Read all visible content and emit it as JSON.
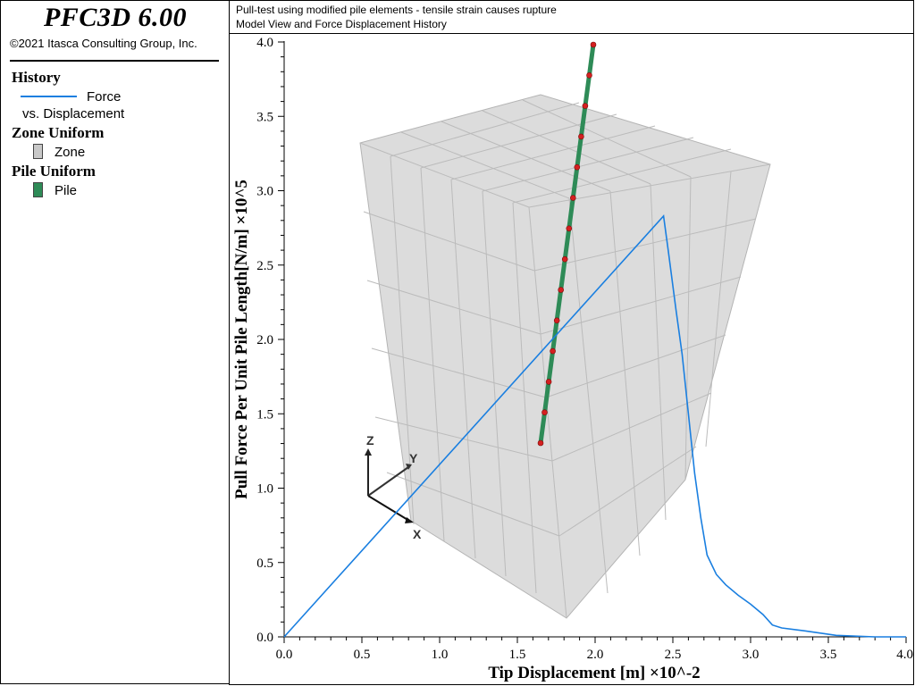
{
  "app": {
    "name": "PFC3D 6.00",
    "copyright": "©2021 Itasca Consulting Group, Inc."
  },
  "header": {
    "line1": "Pull-test using modified pile elements - tensile strain causes rupture",
    "line2": "Model View and Force Displacement History"
  },
  "legend": {
    "history_title": "History",
    "history_item_line1": "Force",
    "history_item_line2": "vs. Displacement",
    "zone_title": "Zone Uniform",
    "zone_item": "Zone",
    "pile_title": "Pile Uniform",
    "pile_item": "Pile"
  },
  "colors": {
    "history_line": "#1a7fe0",
    "zone": "#c8c8c8",
    "pile": "#2e8b57",
    "pile_node": "#d42020"
  },
  "icons": [
    "axes-triad-icon"
  ],
  "triad": {
    "x": "X",
    "y": "Y",
    "z": "Z"
  },
  "chart_data": {
    "type": "line",
    "title": "",
    "xlabel": "Tip Displacement [m] ×10^-2",
    "ylabel": "Pull Force Per Unit Pile Length[N/m] ×10^5",
    "xlim": [
      0,
      4.0
    ],
    "ylim": [
      0,
      4.0
    ],
    "x_ticks": [
      "0.0",
      "0.5",
      "1.0",
      "1.5",
      "2.0",
      "2.5",
      "3.0",
      "3.5",
      "4.0"
    ],
    "y_ticks": [
      "0.0",
      "0.5",
      "1.0",
      "1.5",
      "2.0",
      "2.5",
      "3.0",
      "3.5",
      "4.0"
    ],
    "grid": false,
    "series": [
      {
        "name": "Force vs. Displacement",
        "x": [
          0,
          2.44,
          2.47,
          2.52,
          2.56,
          2.6,
          2.64,
          2.68,
          2.72,
          2.78,
          2.84,
          2.92,
          3.0,
          3.08,
          3.14,
          3.2,
          3.35,
          3.55,
          3.8,
          4.0
        ],
        "y": [
          0,
          2.83,
          2.6,
          2.2,
          1.9,
          1.5,
          1.1,
          0.8,
          0.55,
          0.42,
          0.35,
          0.28,
          0.22,
          0.15,
          0.08,
          0.06,
          0.04,
          0.01,
          0.0,
          0.0
        ]
      }
    ]
  }
}
